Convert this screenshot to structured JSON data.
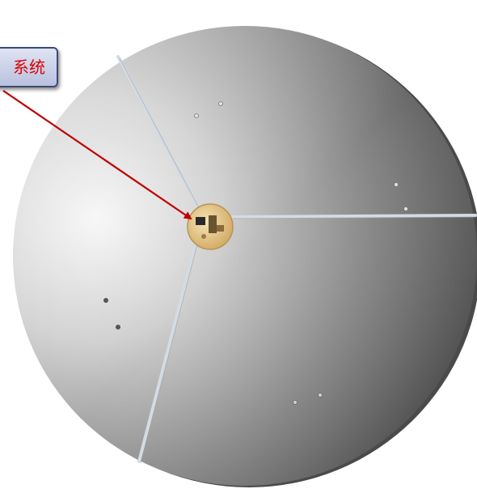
{
  "image": {
    "subject": "parabolic-dish-reflector",
    "callout": {
      "label": "系统",
      "text_color": "#e00000",
      "border_color": "#3d4a78"
    },
    "arrow": {
      "color": "#c00000"
    },
    "colors": {
      "dish_light": "#f4f4f4",
      "dish_dark": "#3e3e3e",
      "hub": "#e8cd92",
      "struts": "#cdd5de"
    }
  }
}
